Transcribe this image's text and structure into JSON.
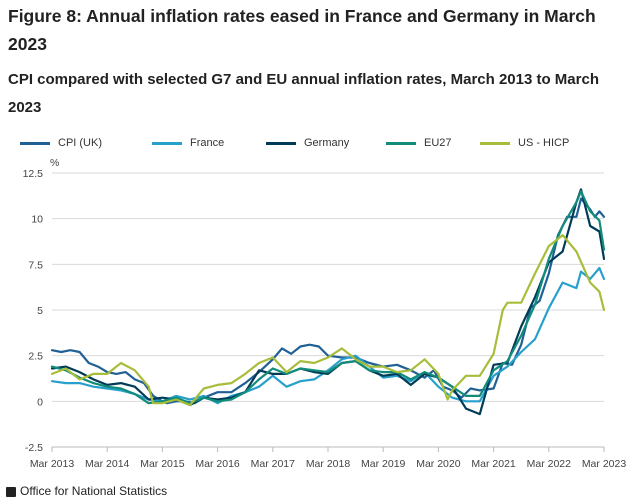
{
  "title": "Figure 8: Annual inflation rates eased in France and Germany in March 2023",
  "subtitle": "CPI compared with selected G7 and EU annual inflation rates, March 2013 to March 2023",
  "footer_text": "Office for National Statistics",
  "chart_data": {
    "type": "line",
    "ylabel": "%",
    "ylim": [
      -2.5,
      12.5
    ],
    "yticks": [
      -2.5,
      0,
      2.5,
      5,
      7.5,
      10,
      12.5
    ],
    "ytick_labels": [
      "-2.5",
      "0",
      "2.5",
      "5",
      "7.5",
      "10",
      "12.5"
    ],
    "x_tick_labels": [
      "Mar 2013",
      "Mar 2014",
      "Mar 2015",
      "Mar 2016",
      "Mar 2017",
      "Mar 2018",
      "Mar 2019",
      "Mar 2020",
      "Mar 2021",
      "Mar 2022",
      "Mar 2023"
    ],
    "grid": true,
    "legend_position": "top",
    "x_start": "2013-03",
    "x_end": "2023-03",
    "series": [
      {
        "name": "CPI (UK)",
        "color": "#206095",
        "points": [
          [
            "2013-03",
            2.8
          ],
          [
            "2013-05",
            2.7
          ],
          [
            "2013-07",
            2.8
          ],
          [
            "2013-09",
            2.7
          ],
          [
            "2013-11",
            2.1
          ],
          [
            "2014-01",
            1.9
          ],
          [
            "2014-03",
            1.6
          ],
          [
            "2014-05",
            1.5
          ],
          [
            "2014-07",
            1.6
          ],
          [
            "2014-09",
            1.2
          ],
          [
            "2014-11",
            1.0
          ],
          [
            "2015-01",
            0.3
          ],
          [
            "2015-03",
            0.0
          ],
          [
            "2015-04",
            -0.1
          ],
          [
            "2015-06",
            0.0
          ],
          [
            "2015-08",
            0.0
          ],
          [
            "2015-10",
            -0.1
          ],
          [
            "2015-12",
            0.2
          ],
          [
            "2016-03",
            0.5
          ],
          [
            "2016-06",
            0.5
          ],
          [
            "2016-09",
            1.0
          ],
          [
            "2016-12",
            1.6
          ],
          [
            "2017-03",
            2.3
          ],
          [
            "2017-05",
            2.9
          ],
          [
            "2017-07",
            2.6
          ],
          [
            "2017-09",
            3.0
          ],
          [
            "2017-11",
            3.1
          ],
          [
            "2018-01",
            3.0
          ],
          [
            "2018-03",
            2.5
          ],
          [
            "2018-06",
            2.4
          ],
          [
            "2018-09",
            2.4
          ],
          [
            "2018-12",
            2.1
          ],
          [
            "2019-03",
            1.9
          ],
          [
            "2019-06",
            2.0
          ],
          [
            "2019-09",
            1.7
          ],
          [
            "2019-12",
            1.3
          ],
          [
            "2020-02",
            1.7
          ],
          [
            "2020-04",
            0.8
          ],
          [
            "2020-06",
            0.6
          ],
          [
            "2020-08",
            0.2
          ],
          [
            "2020-10",
            0.7
          ],
          [
            "2020-12",
            0.6
          ],
          [
            "2021-03",
            0.7
          ],
          [
            "2021-05",
            2.1
          ],
          [
            "2021-07",
            2.0
          ],
          [
            "2021-09",
            3.1
          ],
          [
            "2021-11",
            5.1
          ],
          [
            "2022-01",
            5.5
          ],
          [
            "2022-03",
            7.0
          ],
          [
            "2022-05",
            9.1
          ],
          [
            "2022-07",
            10.1
          ],
          [
            "2022-09",
            10.1
          ],
          [
            "2022-10",
            11.1
          ],
          [
            "2022-12",
            10.5
          ],
          [
            "2023-01",
            10.1
          ],
          [
            "2023-02",
            10.4
          ],
          [
            "2023-03",
            10.1
          ]
        ]
      },
      {
        "name": "France",
        "color": "#27a0cc",
        "points": [
          [
            "2013-03",
            1.1
          ],
          [
            "2013-06",
            1.0
          ],
          [
            "2013-09",
            1.0
          ],
          [
            "2013-12",
            0.8
          ],
          [
            "2014-03",
            0.7
          ],
          [
            "2014-06",
            0.6
          ],
          [
            "2014-09",
            0.4
          ],
          [
            "2014-12",
            0.1
          ],
          [
            "2015-03",
            0.0
          ],
          [
            "2015-06",
            0.3
          ],
          [
            "2015-09",
            0.1
          ],
          [
            "2015-12",
            0.3
          ],
          [
            "2016-03",
            -0.1
          ],
          [
            "2016-06",
            0.3
          ],
          [
            "2016-09",
            0.5
          ],
          [
            "2016-12",
            0.8
          ],
          [
            "2017-03",
            1.4
          ],
          [
            "2017-06",
            0.8
          ],
          [
            "2017-09",
            1.1
          ],
          [
            "2017-12",
            1.2
          ],
          [
            "2018-03",
            1.7
          ],
          [
            "2018-06",
            2.3
          ],
          [
            "2018-09",
            2.5
          ],
          [
            "2018-12",
            1.9
          ],
          [
            "2019-03",
            1.3
          ],
          [
            "2019-06",
            1.4
          ],
          [
            "2019-09",
            1.1
          ],
          [
            "2019-12",
            1.6
          ],
          [
            "2020-03",
            0.8
          ],
          [
            "2020-06",
            0.2
          ],
          [
            "2020-09",
            0.0
          ],
          [
            "2020-12",
            0.0
          ],
          [
            "2021-03",
            1.4
          ],
          [
            "2021-06",
            1.9
          ],
          [
            "2021-09",
            2.7
          ],
          [
            "2021-12",
            3.4
          ],
          [
            "2022-03",
            5.1
          ],
          [
            "2022-06",
            6.5
          ],
          [
            "2022-09",
            6.2
          ],
          [
            "2022-10",
            7.1
          ],
          [
            "2022-12",
            6.7
          ],
          [
            "2023-02",
            7.3
          ],
          [
            "2023-03",
            6.7
          ]
        ]
      },
      {
        "name": "Germany",
        "color": "#003c57",
        "points": [
          [
            "2013-03",
            1.8
          ],
          [
            "2013-06",
            1.9
          ],
          [
            "2013-09",
            1.6
          ],
          [
            "2013-12",
            1.2
          ],
          [
            "2014-03",
            0.9
          ],
          [
            "2014-06",
            1.0
          ],
          [
            "2014-09",
            0.8
          ],
          [
            "2014-12",
            0.1
          ],
          [
            "2015-03",
            0.2
          ],
          [
            "2015-06",
            0.1
          ],
          [
            "2015-09",
            -0.2
          ],
          [
            "2015-12",
            0.2
          ],
          [
            "2016-03",
            0.1
          ],
          [
            "2016-06",
            0.2
          ],
          [
            "2016-09",
            0.5
          ],
          [
            "2016-12",
            1.7
          ],
          [
            "2017-03",
            1.5
          ],
          [
            "2017-06",
            1.5
          ],
          [
            "2017-09",
            1.8
          ],
          [
            "2017-12",
            1.6
          ],
          [
            "2018-03",
            1.5
          ],
          [
            "2018-06",
            2.1
          ],
          [
            "2018-09",
            2.2
          ],
          [
            "2018-12",
            1.7
          ],
          [
            "2019-03",
            1.4
          ],
          [
            "2019-06",
            1.5
          ],
          [
            "2019-09",
            0.9
          ],
          [
            "2019-12",
            1.5
          ],
          [
            "2020-03",
            1.3
          ],
          [
            "2020-06",
            0.8
          ],
          [
            "2020-09",
            -0.4
          ],
          [
            "2020-12",
            -0.7
          ],
          [
            "2021-03",
            2.0
          ],
          [
            "2021-06",
            2.1
          ],
          [
            "2021-09",
            4.1
          ],
          [
            "2021-12",
            5.7
          ],
          [
            "2022-03",
            7.6
          ],
          [
            "2022-06",
            8.2
          ],
          [
            "2022-09",
            10.9
          ],
          [
            "2022-10",
            11.6
          ],
          [
            "2022-12",
            9.6
          ],
          [
            "2023-02",
            9.3
          ],
          [
            "2023-03",
            7.8
          ]
        ]
      },
      {
        "name": "EU27",
        "color": "#118c7b",
        "points": [
          [
            "2013-03",
            1.9
          ],
          [
            "2013-06",
            1.7
          ],
          [
            "2013-09",
            1.3
          ],
          [
            "2013-12",
            1.0
          ],
          [
            "2014-03",
            0.8
          ],
          [
            "2014-06",
            0.7
          ],
          [
            "2014-09",
            0.4
          ],
          [
            "2014-12",
            -0.1
          ],
          [
            "2015-03",
            0.0
          ],
          [
            "2015-06",
            0.2
          ],
          [
            "2015-09",
            -0.1
          ],
          [
            "2015-12",
            0.2
          ],
          [
            "2016-03",
            0.0
          ],
          [
            "2016-06",
            0.1
          ],
          [
            "2016-09",
            0.5
          ],
          [
            "2016-12",
            1.2
          ],
          [
            "2017-03",
            1.8
          ],
          [
            "2017-06",
            1.5
          ],
          [
            "2017-09",
            1.8
          ],
          [
            "2017-12",
            1.7
          ],
          [
            "2018-03",
            1.6
          ],
          [
            "2018-06",
            2.1
          ],
          [
            "2018-09",
            2.2
          ],
          [
            "2018-12",
            1.7
          ],
          [
            "2019-03",
            1.6
          ],
          [
            "2019-06",
            1.6
          ],
          [
            "2019-09",
            1.2
          ],
          [
            "2019-12",
            1.6
          ],
          [
            "2020-03",
            1.3
          ],
          [
            "2020-06",
            0.8
          ],
          [
            "2020-09",
            0.3
          ],
          [
            "2020-12",
            0.3
          ],
          [
            "2021-03",
            1.7
          ],
          [
            "2021-06",
            2.2
          ],
          [
            "2021-09",
            3.6
          ],
          [
            "2021-12",
            5.3
          ],
          [
            "2022-03",
            7.8
          ],
          [
            "2022-06",
            9.6
          ],
          [
            "2022-09",
            10.9
          ],
          [
            "2022-10",
            11.5
          ],
          [
            "2022-12",
            10.4
          ],
          [
            "2023-02",
            9.9
          ],
          [
            "2023-03",
            8.3
          ]
        ]
      },
      {
        "name": "US - HICP",
        "color": "#a8bd3a",
        "points": [
          [
            "2013-03",
            1.5
          ],
          [
            "2013-06",
            1.8
          ],
          [
            "2013-09",
            1.2
          ],
          [
            "2013-12",
            1.5
          ],
          [
            "2014-03",
            1.5
          ],
          [
            "2014-06",
            2.1
          ],
          [
            "2014-09",
            1.7
          ],
          [
            "2014-12",
            0.8
          ],
          [
            "2015-01",
            -0.1
          ],
          [
            "2015-03",
            -0.1
          ],
          [
            "2015-06",
            0.1
          ],
          [
            "2015-09",
            -0.2
          ],
          [
            "2015-12",
            0.7
          ],
          [
            "2016-03",
            0.9
          ],
          [
            "2016-06",
            1.0
          ],
          [
            "2016-09",
            1.5
          ],
          [
            "2016-12",
            2.1
          ],
          [
            "2017-03",
            2.4
          ],
          [
            "2017-06",
            1.6
          ],
          [
            "2017-09",
            2.2
          ],
          [
            "2017-12",
            2.1
          ],
          [
            "2018-03",
            2.4
          ],
          [
            "2018-06",
            2.9
          ],
          [
            "2018-09",
            2.3
          ],
          [
            "2018-12",
            1.9
          ],
          [
            "2019-03",
            1.9
          ],
          [
            "2019-06",
            1.6
          ],
          [
            "2019-09",
            1.7
          ],
          [
            "2019-12",
            2.3
          ],
          [
            "2020-03",
            1.5
          ],
          [
            "2020-05",
            0.1
          ],
          [
            "2020-06",
            0.6
          ],
          [
            "2020-09",
            1.4
          ],
          [
            "2020-12",
            1.4
          ],
          [
            "2021-03",
            2.6
          ],
          [
            "2021-05",
            5.0
          ],
          [
            "2021-06",
            5.4
          ],
          [
            "2021-09",
            5.4
          ],
          [
            "2021-12",
            7.0
          ],
          [
            "2022-03",
            8.5
          ],
          [
            "2022-06",
            9.1
          ],
          [
            "2022-09",
            8.2
          ],
          [
            "2022-12",
            6.5
          ],
          [
            "2023-02",
            6.0
          ],
          [
            "2023-03",
            5.0
          ]
        ]
      }
    ]
  }
}
